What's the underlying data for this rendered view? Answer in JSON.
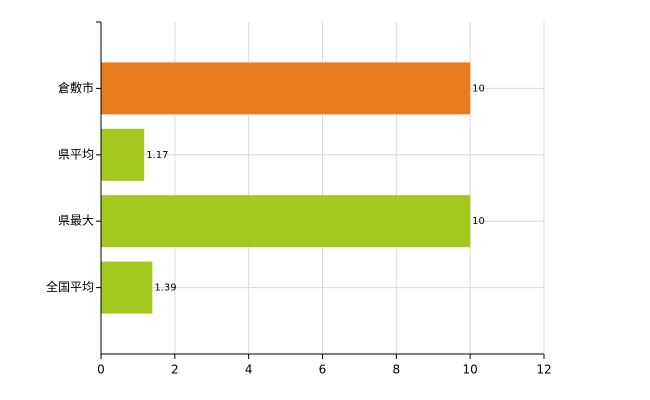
{
  "chart_data": {
    "type": "bar",
    "orientation": "horizontal",
    "categories": [
      "倉敷市",
      "県平均",
      "県最大",
      "全国平均"
    ],
    "values": [
      10,
      1.17,
      10,
      1.39
    ],
    "colors": [
      "#e87b1e",
      "#a5c81e",
      "#a5c81e",
      "#a5c81e"
    ],
    "xlim": [
      0,
      12
    ],
    "xticks": [
      0,
      2,
      4,
      6,
      8,
      10,
      12
    ],
    "grid": true
  }
}
